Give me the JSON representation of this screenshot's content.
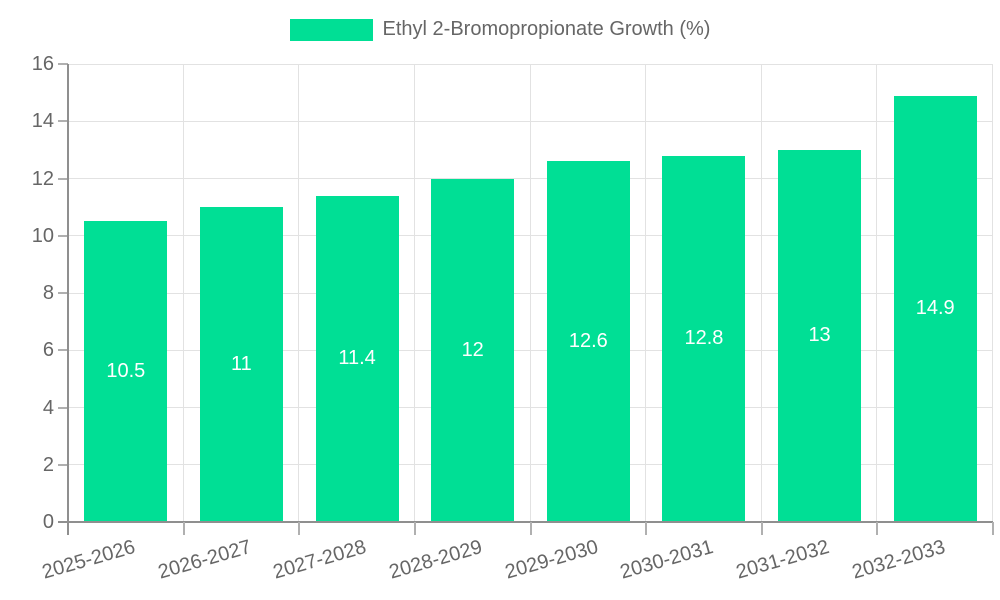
{
  "legend": {
    "label": "Ethyl 2-Bromopropionate Growth (%)",
    "position": "top-center"
  },
  "chart_data": {
    "type": "bar",
    "title": "",
    "xlabel": "",
    "ylabel": "",
    "categories": [
      "2025-2026",
      "2026-2027",
      "2027-2028",
      "2028-2029",
      "2029-2030",
      "2030-2031",
      "2031-2032",
      "2032-2033"
    ],
    "values": [
      10.5,
      11,
      11.4,
      12,
      12.6,
      12.8,
      13,
      14.9
    ],
    "series_name": "Ethyl 2-Bromopropionate Growth (%)",
    "ylim": [
      0,
      16
    ],
    "yticks": [
      0,
      2,
      4,
      6,
      8,
      10,
      12,
      14,
      16
    ],
    "grid": true,
    "legend_position": "top",
    "bar_color": "#00DF95",
    "value_label_color": "#FFFFFF",
    "axis_text_color": "#666666",
    "grid_color": "#E2E2E2",
    "axis_line_color": "#8F8F8F",
    "x_label_rotation_deg": -16
  }
}
